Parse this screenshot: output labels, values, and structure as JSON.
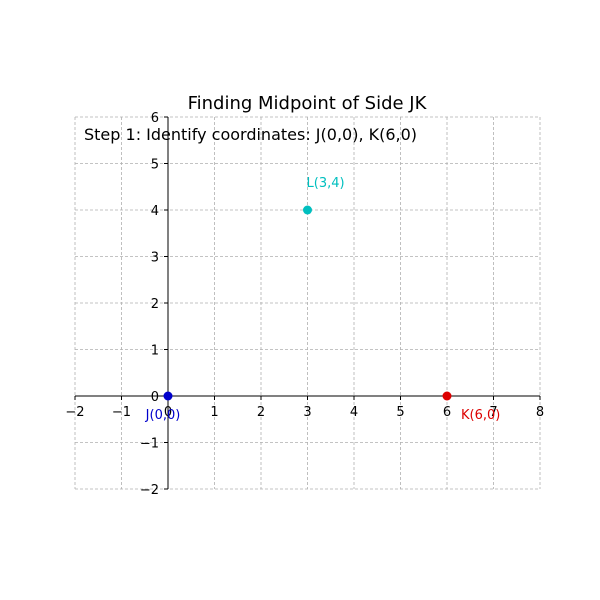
{
  "chart_data": {
    "type": "scatter",
    "title": "Finding Midpoint of Side JK",
    "annotation": "Step 1: Identify coordinates: J(0,0), K(6,0)",
    "xlim": [
      -2,
      8
    ],
    "ylim": [
      -2,
      6
    ],
    "grid": true,
    "x_ticks": [
      -2,
      -1,
      0,
      1,
      2,
      3,
      4,
      5,
      6,
      7,
      8
    ],
    "y_ticks": [
      -2,
      -1,
      0,
      1,
      2,
      3,
      4,
      5,
      6
    ],
    "x_tick_labels": [
      "−2",
      "−1",
      "0",
      "1",
      "2",
      "3",
      "4",
      "5",
      "6",
      "7",
      "8"
    ],
    "y_tick_labels": [
      "−2",
      "−1",
      "0",
      "1",
      "2",
      "3",
      "4",
      "5",
      "6"
    ],
    "points": [
      {
        "label": "J(0,0)",
        "x": 0,
        "y": 0,
        "color": "#0000cc",
        "label_pos": "below"
      },
      {
        "label": "K(6,0)",
        "x": 6,
        "y": 0,
        "color": "#dd0000",
        "label_pos": "below-right"
      },
      {
        "label": "L(3,4)",
        "x": 3,
        "y": 4,
        "color": "#00bfbf",
        "label_pos": "above"
      }
    ]
  }
}
